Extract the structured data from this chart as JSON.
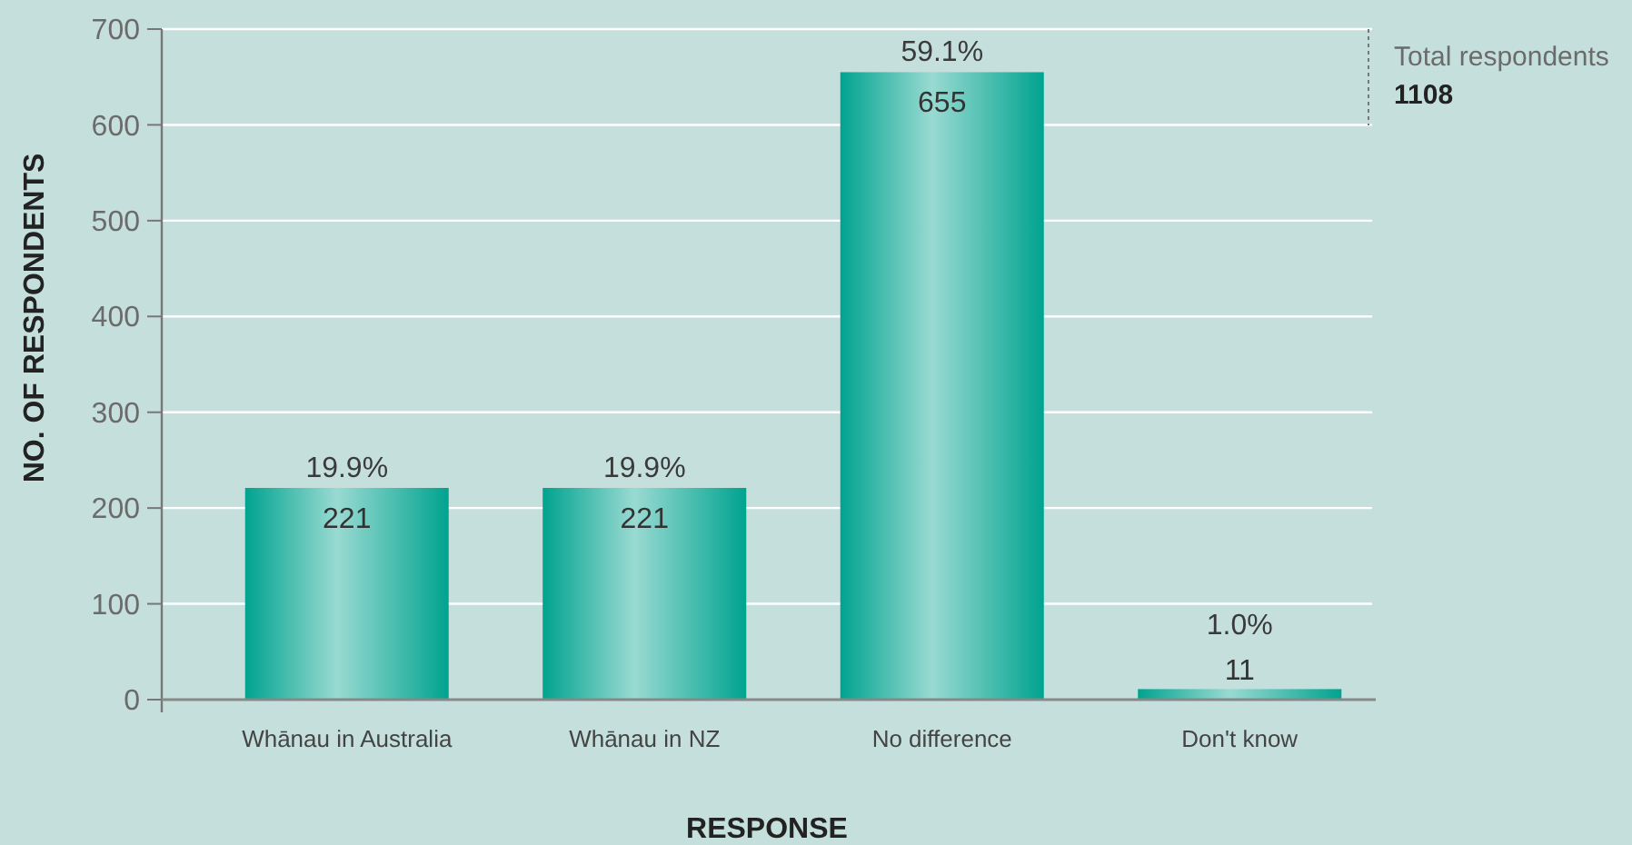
{
  "chart_data": {
    "type": "bar",
    "categories": [
      "Whānau in Australia",
      "Whānau in NZ",
      "No difference",
      "Don't know"
    ],
    "values": [
      221,
      221,
      655,
      11
    ],
    "color": "#00a38f",
    "ylim": [
      0,
      700
    ],
    "yticks": [
      0,
      100,
      200,
      300,
      400,
      500,
      600,
      700
    ],
    "grid": "y",
    "data_labels": true,
    "xlabel": "RESPONSE",
    "ylabel": "NO. OF RESPONDENTS",
    "annotations": [
      {
        "text": "19.9%",
        "x": "Whānau in Australia",
        "y": 221
      },
      {
        "text": "19.9%",
        "x": "Whānau in NZ",
        "y": 221
      },
      {
        "text": "59.1%",
        "x": "No difference",
        "y": 655
      },
      {
        "text": "1.0%",
        "x": "Don't know",
        "y": 11
      },
      "Total respondents",
      "1108"
    ]
  }
}
